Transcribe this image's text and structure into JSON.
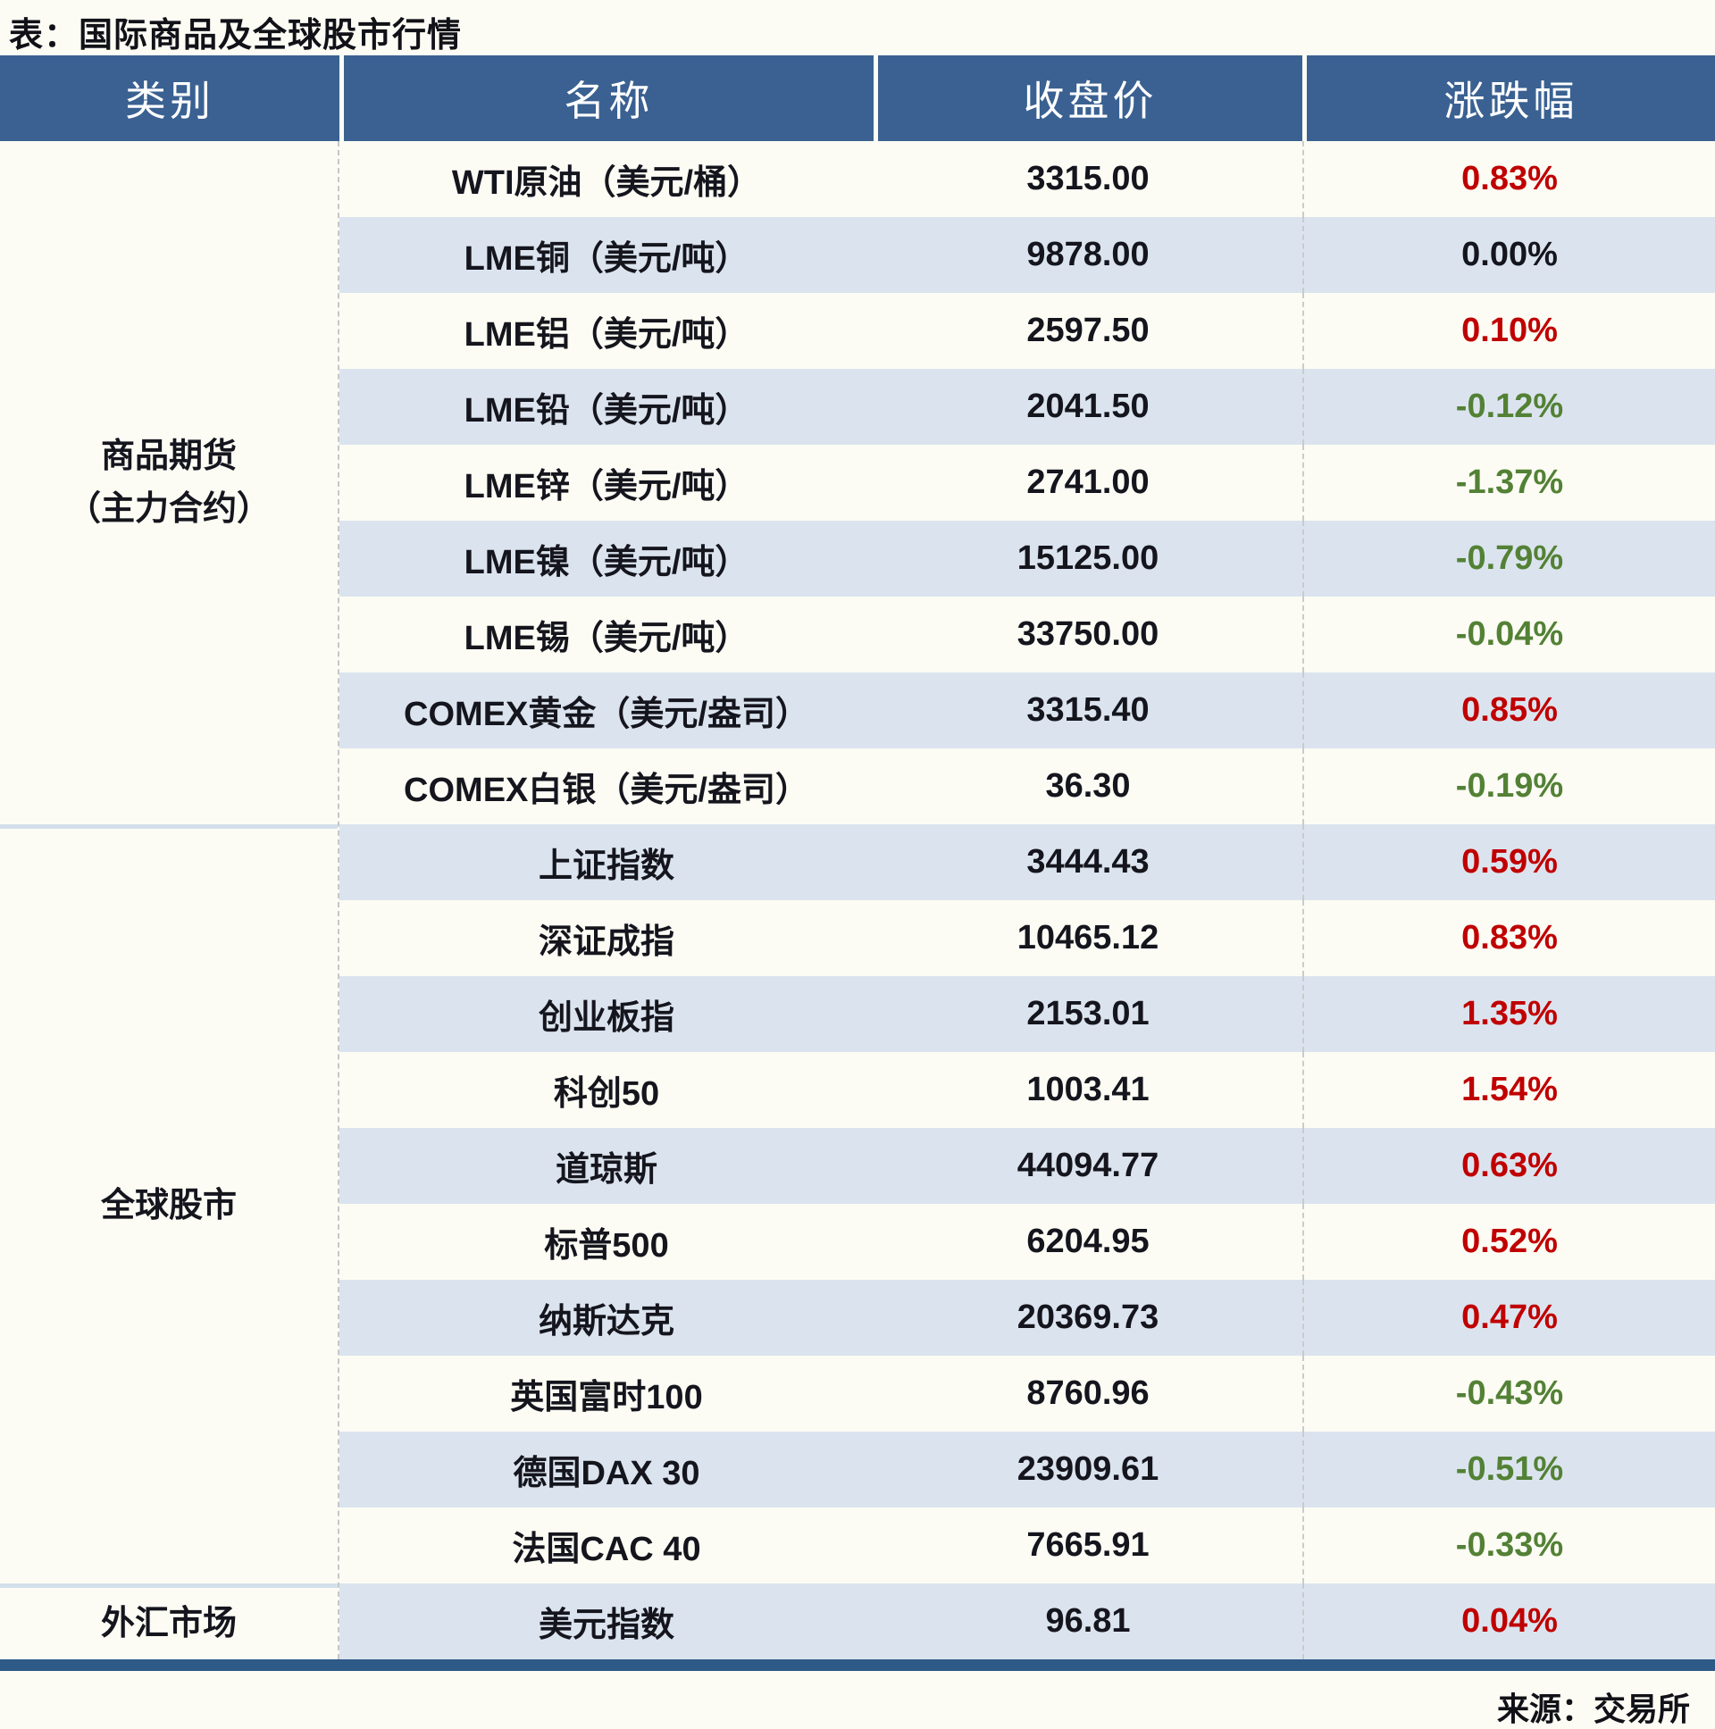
{
  "title": "表：国际商品及全球股市行情",
  "source": "来源：交易所",
  "header": {
    "category": "类别",
    "name": "名称",
    "close": "收盘价",
    "change": "涨跌幅"
  },
  "colors": {
    "up": "#c00000",
    "down": "#538135",
    "flat": "#15151e",
    "header_bg": "#3a6191",
    "row_stripe": "#dbe4ee",
    "accent_bar": "#2e5a88"
  },
  "sections": [
    {
      "category_lines": [
        "商品期货",
        "（主力合约）"
      ],
      "rows": [
        {
          "name": "WTI原油（美元/桶）",
          "close": "3315.00",
          "change": "0.83%",
          "direction": "up"
        },
        {
          "name": "LME铜（美元/吨）",
          "close": "9878.00",
          "change": "0.00%",
          "direction": "flat"
        },
        {
          "name": "LME铝（美元/吨）",
          "close": "2597.50",
          "change": "0.10%",
          "direction": "up"
        },
        {
          "name": "LME铅（美元/吨）",
          "close": "2041.50",
          "change": "-0.12%",
          "direction": "down"
        },
        {
          "name": "LME锌（美元/吨）",
          "close": "2741.00",
          "change": "-1.37%",
          "direction": "down"
        },
        {
          "name": "LME镍（美元/吨）",
          "close": "15125.00",
          "change": "-0.79%",
          "direction": "down"
        },
        {
          "name": "LME锡（美元/吨）",
          "close": "33750.00",
          "change": "-0.04%",
          "direction": "down"
        },
        {
          "name": "COMEX黄金（美元/盎司）",
          "close": "3315.40",
          "change": "0.85%",
          "direction": "up"
        },
        {
          "name": "COMEX白银（美元/盎司）",
          "close": "36.30",
          "change": "-0.19%",
          "direction": "down"
        }
      ]
    },
    {
      "category_lines": [
        "全球股市"
      ],
      "rows": [
        {
          "name": "上证指数",
          "close": "3444.43",
          "change": "0.59%",
          "direction": "up"
        },
        {
          "name": "深证成指",
          "close": "10465.12",
          "change": "0.83%",
          "direction": "up"
        },
        {
          "name": "创业板指",
          "close": "2153.01",
          "change": "1.35%",
          "direction": "up"
        },
        {
          "name": "科创50",
          "close": "1003.41",
          "change": "1.54%",
          "direction": "up"
        },
        {
          "name": "道琼斯",
          "close": "44094.77",
          "change": "0.63%",
          "direction": "up"
        },
        {
          "name": "标普500",
          "close": "6204.95",
          "change": "0.52%",
          "direction": "up"
        },
        {
          "name": "纳斯达克",
          "close": "20369.73",
          "change": "0.47%",
          "direction": "up"
        },
        {
          "name": "英国富时100",
          "close": "8760.96",
          "change": "-0.43%",
          "direction": "down"
        },
        {
          "name": "德国DAX 30",
          "close": "23909.61",
          "change": "-0.51%",
          "direction": "down"
        },
        {
          "name": "法国CAC 40",
          "close": "7665.91",
          "change": "-0.33%",
          "direction": "down"
        }
      ]
    },
    {
      "category_lines": [
        "外汇市场"
      ],
      "rows": [
        {
          "name": "美元指数",
          "close": "96.81",
          "change": "0.04%",
          "direction": "up"
        }
      ]
    }
  ],
  "chart_data": {
    "type": "table",
    "title": "表：国际商品及全球股市行情",
    "columns": [
      "类别",
      "名称",
      "收盘价",
      "涨跌幅"
    ],
    "rows": [
      [
        "商品期货（主力合约）",
        "WTI原油（美元/桶）",
        3315.0,
        "0.83%"
      ],
      [
        "商品期货（主力合约）",
        "LME铜（美元/吨）",
        9878.0,
        "0.00%"
      ],
      [
        "商品期货（主力合约）",
        "LME铝（美元/吨）",
        2597.5,
        "0.10%"
      ],
      [
        "商品期货（主力合约）",
        "LME铅（美元/吨）",
        2041.5,
        "-0.12%"
      ],
      [
        "商品期货（主力合约）",
        "LME锌（美元/吨）",
        2741.0,
        "-1.37%"
      ],
      [
        "商品期货（主力合约）",
        "LME镍（美元/吨）",
        15125.0,
        "-0.79%"
      ],
      [
        "商品期货（主力合约）",
        "LME锡（美元/吨）",
        33750.0,
        "-0.04%"
      ],
      [
        "商品期货（主力合约）",
        "COMEX黄金（美元/盎司）",
        3315.4,
        "0.85%"
      ],
      [
        "商品期货（主力合约）",
        "COMEX白银（美元/盎司）",
        36.3,
        "-0.19%"
      ],
      [
        "全球股市",
        "上证指数",
        3444.43,
        "0.59%"
      ],
      [
        "全球股市",
        "深证成指",
        10465.12,
        "0.83%"
      ],
      [
        "全球股市",
        "创业板指",
        2153.01,
        "1.35%"
      ],
      [
        "全球股市",
        "科创50",
        1003.41,
        "1.54%"
      ],
      [
        "全球股市",
        "道琼斯",
        44094.77,
        "0.63%"
      ],
      [
        "全球股市",
        "标普500",
        6204.95,
        "0.52%"
      ],
      [
        "全球股市",
        "纳斯达克",
        20369.73,
        "0.47%"
      ],
      [
        "全球股市",
        "英国富时100",
        8760.96,
        "-0.43%"
      ],
      [
        "全球股市",
        "德国DAX 30",
        23909.61,
        "-0.51%"
      ],
      [
        "全球股市",
        "法国CAC 40",
        7665.91,
        "-0.33%"
      ],
      [
        "外汇市场",
        "美元指数",
        96.81,
        "0.04%"
      ]
    ],
    "source": "来源：交易所",
    "color_coding": {
      "red": "positive change",
      "green": "negative change",
      "black": "zero change"
    },
    "legend_position": "none",
    "grid": "alternating row stripes"
  }
}
